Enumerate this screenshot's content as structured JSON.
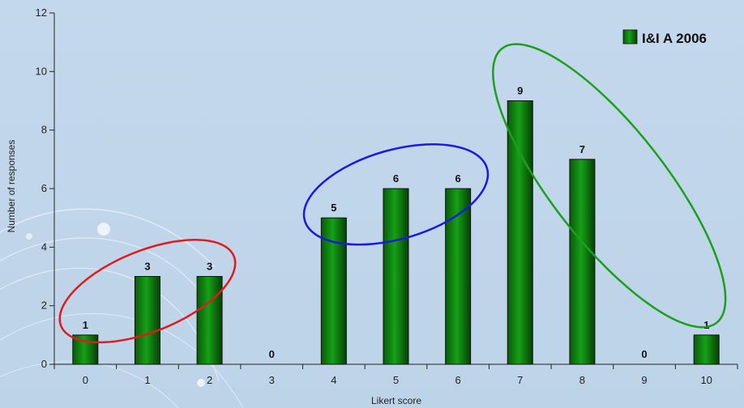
{
  "chart_data": {
    "type": "bar",
    "categories": [
      "0",
      "1",
      "2",
      "3",
      "4",
      "5",
      "6",
      "7",
      "8",
      "9",
      "10"
    ],
    "series": [
      {
        "name": "I&I A 2006",
        "values": [
          1,
          3,
          3,
          0,
          5,
          6,
          6,
          9,
          7,
          0,
          1
        ],
        "color": "#0b7a0b"
      }
    ],
    "data_labels": [
      "1",
      "3",
      "3",
      "0",
      "5",
      "6",
      "6",
      "9",
      "7",
      "0",
      "1"
    ],
    "xlabel": "Likert score",
    "ylabel": "Number of responses",
    "ylim": [
      0,
      12
    ],
    "yticks": [
      0,
      2,
      4,
      6,
      8,
      10,
      12
    ],
    "ytick_labels": [
      "0",
      "2",
      "4",
      "6",
      "8",
      "10",
      "12"
    ],
    "grid": false,
    "legend": {
      "placement": "top-right",
      "label": "I&I A 2006"
    },
    "annotations": [
      {
        "shape": "ellipse",
        "color": "#e31a1c",
        "encloses_categories": [
          "0",
          "1",
          "2"
        ]
      },
      {
        "shape": "ellipse",
        "color": "#1a1ae0",
        "encloses_categories": [
          "4",
          "5",
          "6"
        ]
      },
      {
        "shape": "ellipse",
        "color": "#1aa01a",
        "encloses_categories": [
          "7",
          "8",
          "9",
          "10"
        ]
      }
    ],
    "background_color": "#c2d6ea"
  }
}
